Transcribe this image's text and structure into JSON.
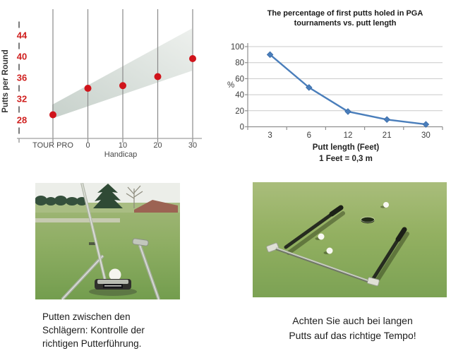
{
  "chart_data": [
    {
      "type": "scatter",
      "title": "",
      "categories": [
        "TOUR PRO",
        "0",
        "10",
        "20",
        "30"
      ],
      "values": [
        29,
        34,
        34.5,
        36.2,
        39.6
      ],
      "ylabel": "Putts per Round",
      "xlabel": "Handicap",
      "yticks": [
        28,
        32,
        36,
        40,
        44
      ],
      "ylim": [
        26,
        46
      ],
      "gridlines": "vertical",
      "legend": "none",
      "marker_color": "#d0141b",
      "tick_label_color": "#d0201f",
      "axis_text_color": "#474747",
      "band": {
        "left_y": [
          28.3,
          30.9
        ],
        "right_y": [
          37.3,
          45.3
        ],
        "fill_from": "#c7d1cb",
        "fill_to": "#edf0ed"
      }
    },
    {
      "type": "line",
      "title": "The percentage of first putts holed in PGA tournaments vs. putt length",
      "categories": [
        "3",
        "6",
        "12",
        "21",
        "30"
      ],
      "values": [
        90,
        49,
        19,
        9,
        3
      ],
      "ylabel": "%",
      "xlabel": "Putt length (Feet)",
      "footnote": "1 Feet = 0,3 m",
      "yticks": [
        0,
        20,
        40,
        60,
        80,
        100
      ],
      "ylim": [
        0,
        100
      ],
      "gridlines": "horizontal",
      "legend": "none",
      "line_color": "#4a7ebb",
      "marker": "diamond",
      "axis_text_color": "#3d3d3d"
    }
  ],
  "captions": {
    "left": "Putten zwischen den\nSchlägern: Kontrolle der\nrichtigen Putterführung.",
    "right": "Achten Sie auch bei langen\nPutts auf das richtige Tempo!"
  }
}
